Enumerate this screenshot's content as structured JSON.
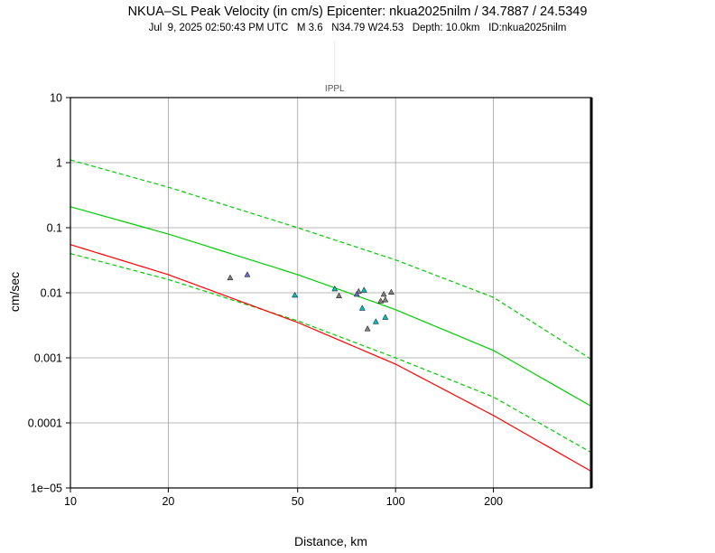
{
  "chart_data": {
    "type": "scatter",
    "title": "NKUA–SL Peak Velocity (in cm/s) Epicenter: nkua2025nilm / 34.7887 / 24.5349",
    "subtitle": "Jul  9, 2025 02:50:43 PM UTC   M 3.6   N34.79 W24.53   Depth: 10.0km   ID:nkua2025nilm",
    "xlabel": "Distance, km",
    "ylabel": "cm/sec",
    "x_scale": "log",
    "y_scale": "log",
    "xlim": [
      10,
      400
    ],
    "ylim": [
      1e-05,
      10
    ],
    "grid": true,
    "x_ticks": [
      {
        "value": 10,
        "label": "10"
      },
      {
        "value": 20,
        "label": "20"
      },
      {
        "value": 50,
        "label": "50"
      },
      {
        "value": 100,
        "label": "100"
      },
      {
        "value": 200,
        "label": "200"
      }
    ],
    "y_ticks": [
      {
        "value": 10,
        "label": "10"
      },
      {
        "value": 1,
        "label": "1"
      },
      {
        "value": 0.1,
        "label": "0.1"
      },
      {
        "value": 0.01,
        "label": "0.01"
      },
      {
        "value": 0.001,
        "label": "0.001"
      },
      {
        "value": 0.0001,
        "label": "0.0001"
      },
      {
        "value": 1e-05,
        "label": "1e−05"
      }
    ],
    "marker": {
      "label": "IPPL",
      "x": 65
    },
    "curves": [
      {
        "style": "dashed",
        "color": "#00cc00",
        "points": [
          [
            10,
            1.1
          ],
          [
            20,
            0.42
          ],
          [
            50,
            0.1
          ],
          [
            100,
            0.032
          ],
          [
            200,
            0.0085
          ],
          [
            400,
            0.00095
          ]
        ]
      },
      {
        "style": "solid",
        "color": "#00cc00",
        "points": [
          [
            10,
            0.21
          ],
          [
            20,
            0.08
          ],
          [
            50,
            0.019
          ],
          [
            100,
            0.0055
          ],
          [
            200,
            0.0013
          ],
          [
            400,
            0.00018
          ]
        ]
      },
      {
        "style": "dashed",
        "color": "#00cc00",
        "points": [
          [
            10,
            0.04
          ],
          [
            20,
            0.016
          ],
          [
            50,
            0.0037
          ],
          [
            100,
            0.001
          ],
          [
            200,
            0.00025
          ],
          [
            400,
            3.5e-05
          ]
        ]
      },
      {
        "style": "solid",
        "color": "#ff0000",
        "points": [
          [
            10,
            0.055
          ],
          [
            20,
            0.019
          ],
          [
            50,
            0.0035
          ],
          [
            100,
            0.0008
          ],
          [
            200,
            0.00013
          ],
          [
            400,
            1.8e-05
          ]
        ]
      }
    ],
    "series": [
      {
        "color": "#808080",
        "points": [
          [
            31,
            0.017
          ],
          [
            67,
            0.009
          ],
          [
            77,
            0.0105
          ],
          [
            82,
            0.0028
          ],
          [
            90,
            0.0075
          ],
          [
            92,
            0.0095
          ],
          [
            93,
            0.0078
          ],
          [
            97,
            0.0102
          ]
        ]
      },
      {
        "color": "#6a6ad0",
        "points": [
          [
            35,
            0.019
          ],
          [
            76,
            0.0095
          ]
        ]
      },
      {
        "color": "#00c0c0",
        "points": [
          [
            49,
            0.0092
          ],
          [
            65,
            0.0115
          ],
          [
            79,
            0.0058
          ],
          [
            80,
            0.011
          ],
          [
            87,
            0.0036
          ],
          [
            93,
            0.0042
          ]
        ]
      }
    ]
  }
}
